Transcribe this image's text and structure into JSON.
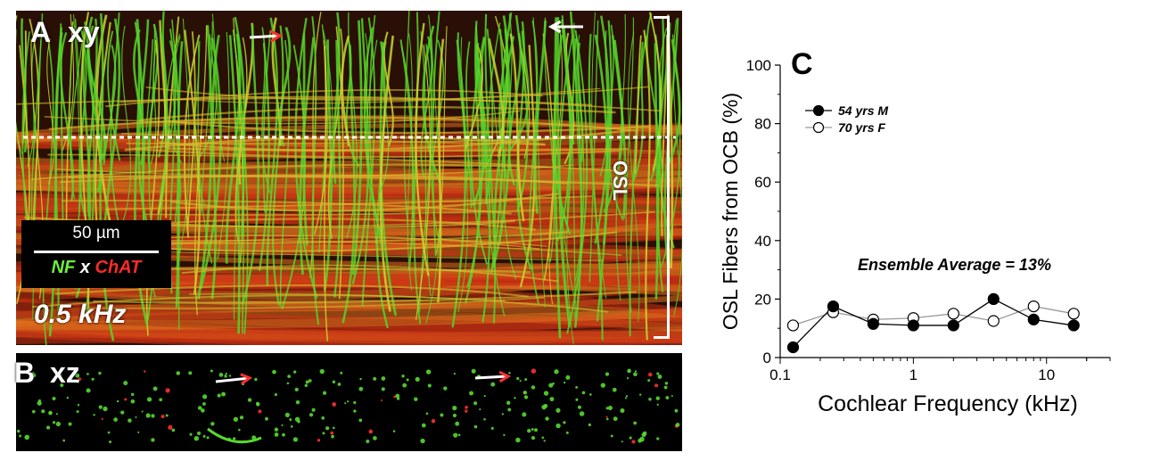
{
  "panel_a": {
    "letter": "A",
    "view": "xy",
    "scale_text": "50 µm",
    "stain_nf": "NF",
    "stain_x": "x",
    "stain_chat": "ChAT",
    "frequency": "0.5 kHz",
    "bracket_label": "OSL"
  },
  "panel_b": {
    "letter": "B",
    "view": "xz"
  },
  "colors": {
    "nf_green": "#6cf03a",
    "chat_red": "#ff2a2a",
    "series_filled": "#000000",
    "series_open": "#ffffff"
  },
  "chart_data": {
    "panel_letter": "C",
    "type": "line",
    "xlabel": "Cochlear Frequency (kHz)",
    "ylabel": "OSL Fibers from OCB (%)",
    "x_scale": "log",
    "xlim": [
      0.1,
      30
    ],
    "ylim": [
      0,
      100
    ],
    "xticks": [
      0.1,
      1,
      10
    ],
    "xtick_labels": [
      "0.1",
      "1",
      "10"
    ],
    "yticks": [
      0,
      20,
      40,
      60,
      80,
      100
    ],
    "ytick_labels": [
      "0",
      "20",
      "40",
      "60",
      "80",
      "100"
    ],
    "annotation": "Ensemble Average = 13%",
    "legend_position": "top-left",
    "grid": false,
    "series": [
      {
        "name": "54 yrs M",
        "marker": "filled-circle",
        "line_color": "#000000",
        "x": [
          0.125,
          0.25,
          0.5,
          1,
          2,
          4,
          8,
          16
        ],
        "y": [
          3.5,
          17.5,
          11.5,
          11,
          11,
          20,
          13,
          11
        ]
      },
      {
        "name": "70 yrs F",
        "marker": "open-circle",
        "line_color": "#999999",
        "x": [
          0.125,
          0.25,
          0.5,
          1,
          2,
          4,
          8,
          16
        ],
        "y": [
          11,
          15.5,
          13,
          13.5,
          15,
          12.5,
          17.5,
          15
        ]
      }
    ]
  }
}
